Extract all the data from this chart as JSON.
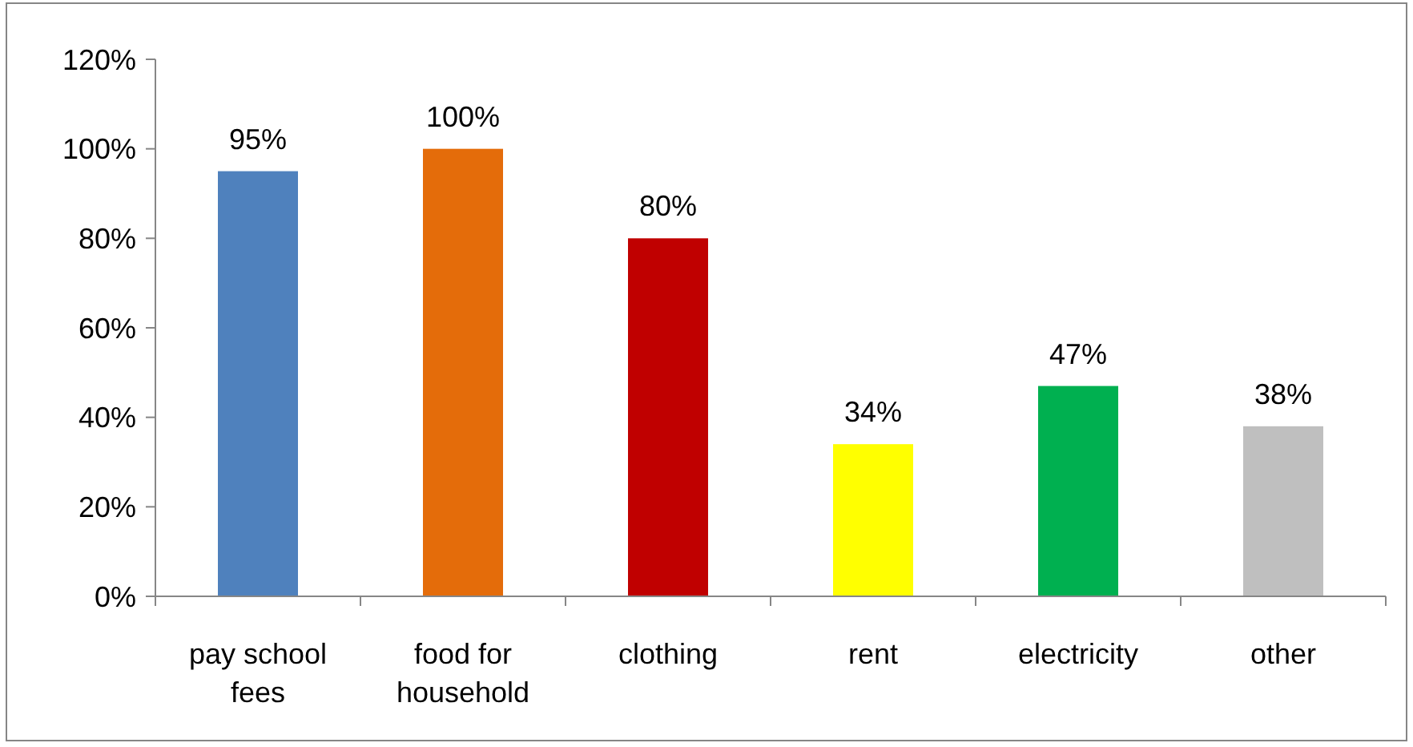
{
  "chart_data": {
    "type": "bar",
    "categories": [
      "pay school fees",
      "food for household",
      "clothing",
      "rent",
      "electricity",
      "other"
    ],
    "values": [
      95,
      100,
      80,
      34,
      47,
      38
    ],
    "colors": [
      "#4f81bd",
      "#e46c0a",
      "#c00000",
      "#ffff00",
      "#00b050",
      "#bfbfbf"
    ],
    "value_labels": [
      "95%",
      "100%",
      "80%",
      "34%",
      "47%",
      "38%"
    ],
    "ylim": [
      0,
      120
    ],
    "yticks": [
      {
        "value": 0,
        "label": "0%"
      },
      {
        "value": 20,
        "label": "20%"
      },
      {
        "value": 40,
        "label": "40%"
      },
      {
        "value": 60,
        "label": "60%"
      },
      {
        "value": 80,
        "label": "80%"
      },
      {
        "value": 100,
        "label": "100%"
      },
      {
        "value": 120,
        "label": "120%"
      }
    ],
    "grid": false
  }
}
